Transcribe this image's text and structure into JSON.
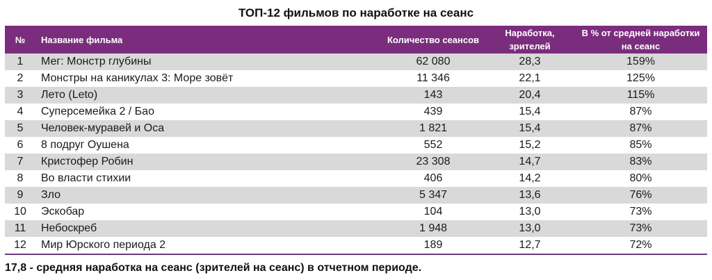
{
  "title": "ТОП-12 фильмов по наработке на сеанс",
  "table": {
    "headers": {
      "num": "№",
      "name": "Название фильма",
      "sessions": "Количество сеансов",
      "viewers": "Наработка, зрителей",
      "percent": "В % от средней наработки на сеанс"
    },
    "rows": [
      {
        "num": "1",
        "name": "Мег: Монстр глубины",
        "sessions": "62 080",
        "viewers": "28,3",
        "percent": "159%"
      },
      {
        "num": "2",
        "name": "Монстры на каникулах 3: Море зовёт",
        "sessions": "11 346",
        "viewers": "22,1",
        "percent": "125%"
      },
      {
        "num": "3",
        "name": "Лето (Leto)",
        "sessions": "143",
        "viewers": "20,4",
        "percent": "115%"
      },
      {
        "num": "4",
        "name": "Суперсемейка 2 / Бао",
        "sessions": "439",
        "viewers": "15,4",
        "percent": "87%"
      },
      {
        "num": "5",
        "name": "Человек-муравей и Оса",
        "sessions": "1 821",
        "viewers": "15,4",
        "percent": "87%"
      },
      {
        "num": "6",
        "name": "8 подруг Оушена",
        "sessions": "552",
        "viewers": "15,2",
        "percent": "85%"
      },
      {
        "num": "7",
        "name": "Кристофер Робин",
        "sessions": "23 308",
        "viewers": "14,7",
        "percent": "83%"
      },
      {
        "num": "8",
        "name": "Во власти стихии",
        "sessions": "406",
        "viewers": "14,2",
        "percent": "80%"
      },
      {
        "num": "9",
        "name": "Зло",
        "sessions": "5 347",
        "viewers": "13,6",
        "percent": "76%"
      },
      {
        "num": "10",
        "name": "Эскобар",
        "sessions": "104",
        "viewers": "13,0",
        "percent": "73%"
      },
      {
        "num": "11",
        "name": "Небоскреб",
        "sessions": "1 948",
        "viewers": "13,0",
        "percent": "73%"
      },
      {
        "num": "12",
        "name": "Мир Юрского периода 2",
        "sessions": "189",
        "viewers": "12,7",
        "percent": "72%"
      }
    ]
  },
  "footer": "17,8 - средняя наработка на сеанс (зрителей на сеанс) в отчетном периоде.",
  "colors": {
    "header_bg": "#7b2d7d",
    "header_text": "#ffffff",
    "stripe": "#d9d9d9",
    "bottom_border": "#6a3a7a"
  }
}
